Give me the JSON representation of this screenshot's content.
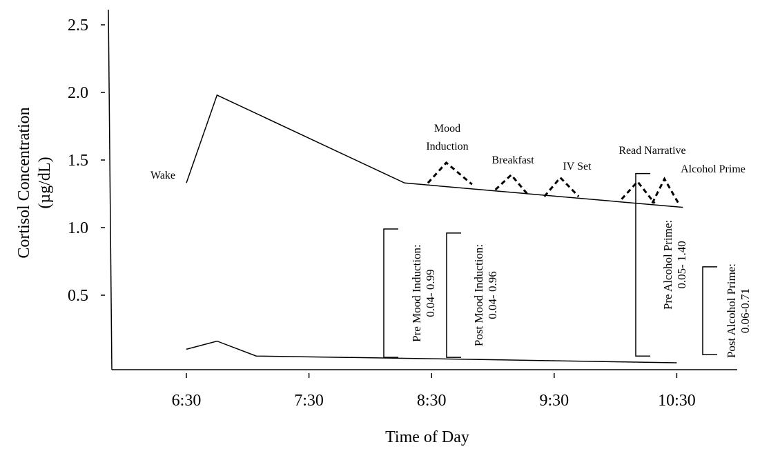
{
  "chart_data": {
    "type": "line",
    "xlabel": "Time of Day",
    "ylabel_line1": "Cortisol Concentration",
    "ylabel_line2": "(µg/dL)",
    "x_ticks": [
      "6:30",
      "7:30",
      "8:30",
      "9:30",
      "10:30"
    ],
    "y_ticks": [
      "2.5",
      "2.0",
      "1.5",
      "1.0",
      "0.5"
    ],
    "ylim": [
      0,
      2.55
    ],
    "series": [
      {
        "values": [
          [
            6.5,
            1.33
          ],
          [
            6.75,
            1.98
          ],
          [
            8.28,
            1.33
          ],
          [
            10.55,
            1.15
          ]
        ]
      },
      {
        "values": [
          [
            6.5,
            0.1
          ],
          [
            6.75,
            0.16
          ],
          [
            7.07,
            0.05
          ],
          [
            8.5,
            0.03
          ],
          [
            10.5,
            0.0
          ]
        ]
      }
    ],
    "event_markers": [
      {
        "label_lines": [
          "Mood",
          "Induction"
        ],
        "start": 8.47,
        "peak": 8.62,
        "end": 8.83,
        "base_start": 1.33,
        "peak_value": 1.48,
        "base_end": 1.32
      },
      {
        "label_lines": [
          "Breakfast"
        ],
        "start": 9.02,
        "peak": 9.15,
        "end": 9.28,
        "base_start": 1.28,
        "peak_value": 1.39,
        "base_end": 1.25
      },
      {
        "label_lines": [
          "IV Set"
        ],
        "start": 9.42,
        "peak": 9.55,
        "end": 9.7,
        "base_start": 1.23,
        "peak_value": 1.37,
        "base_end": 1.23
      },
      {
        "label_lines": [
          "Read Narrative"
        ],
        "start": 10.05,
        "peak": 10.18,
        "end": 10.32,
        "base_start": 1.21,
        "peak_value": 1.34,
        "base_end": 1.18
      },
      {
        "label_lines": [
          "Alcohol Prime"
        ],
        "start": 10.3,
        "peak": 10.4,
        "end": 10.52,
        "base_start": 1.18,
        "peak_value": 1.36,
        "base_end": 1.17
      }
    ],
    "range_brackets": [
      {
        "lines": [
          "Pre Mood Induction:",
          "0.04- 0.99"
        ],
        "x": 8.28,
        "top": 0.99,
        "bottom": 0.04
      },
      {
        "lines": [
          "Post Mood Induction:",
          "0.04- 0.96"
        ],
        "x": 8.52,
        "top": 0.96,
        "bottom": 0.04
      },
      {
        "lines": [
          "Pre Alcohol Prime:",
          "0.05- 1.40"
        ],
        "x": 10.0,
        "top": 1.4,
        "bottom": 0.05
      },
      {
        "lines": [
          "Post Alcohol Prime:",
          "0.06-0.71"
        ],
        "x": 10.5,
        "top": 0.71,
        "bottom": 0.06
      }
    ],
    "grid": false
  }
}
